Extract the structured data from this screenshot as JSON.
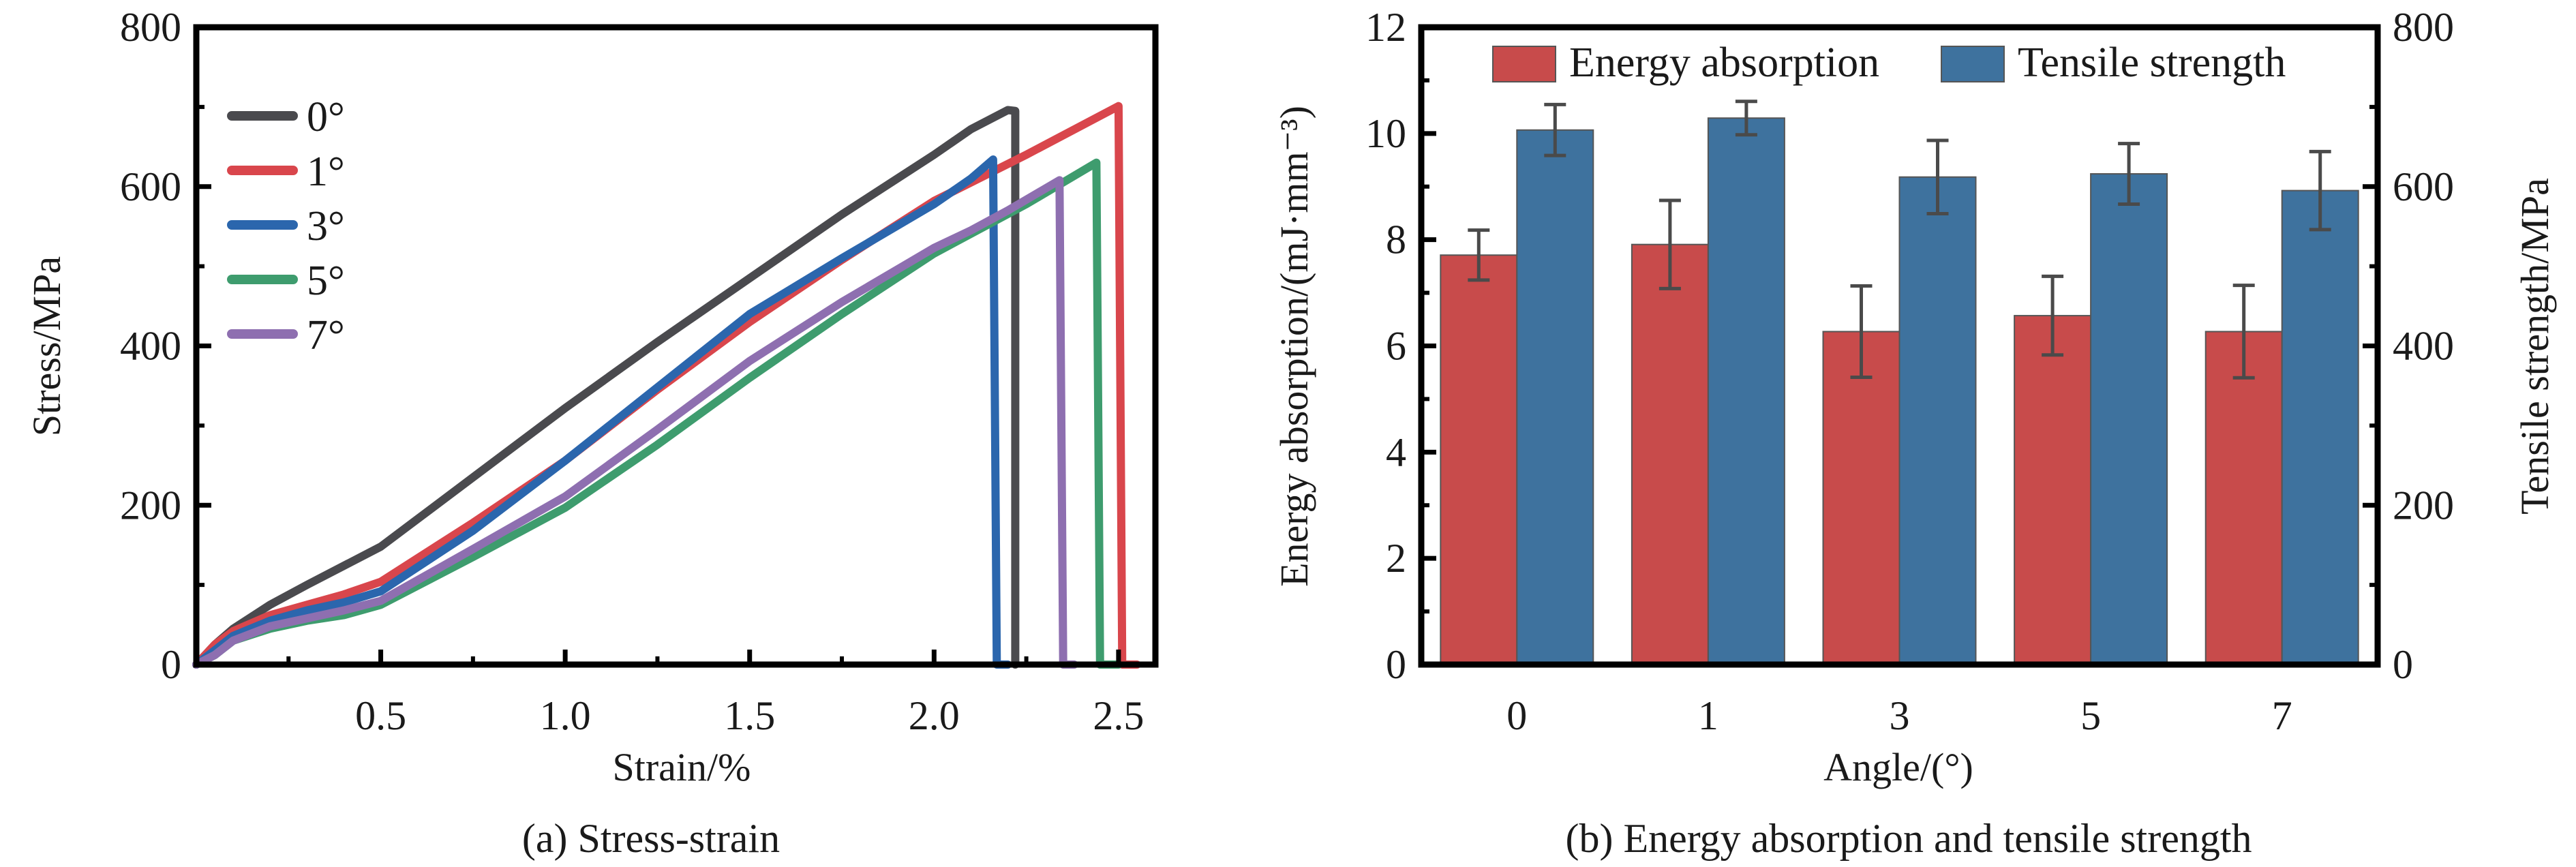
{
  "chart_data": [
    {
      "type": "line",
      "title": "",
      "caption": "(a) Stress-strain",
      "xlabel": "Strain/%",
      "ylabel": "Stress/MPa",
      "xlim": [
        0,
        2.6
      ],
      "ylim": [
        0,
        800
      ],
      "xticks": [
        "0.5",
        "1.0",
        "1.5",
        "2.0",
        "2.5"
      ],
      "xtick_values": [
        0.5,
        1.0,
        1.5,
        2.0,
        2.5
      ],
      "yticks": [
        "0",
        "200",
        "400",
        "600",
        "800"
      ],
      "ytick_values": [
        0,
        200,
        400,
        600,
        800
      ],
      "legend_position": "top-left",
      "grid": false,
      "series": [
        {
          "name": "0°",
          "color": "#4a4a4e",
          "x": [
            0,
            0.05,
            0.1,
            0.2,
            0.3,
            0.5,
            0.75,
            1.0,
            1.25,
            1.5,
            1.75,
            2.0,
            2.1,
            2.2,
            2.22,
            2.22
          ],
          "y": [
            0,
            25,
            45,
            75,
            100,
            148,
            235,
            322,
            405,
            485,
            565,
            640,
            672,
            696,
            695,
            0
          ]
        },
        {
          "name": "1°",
          "color": "#d9464c",
          "x": [
            0,
            0.05,
            0.1,
            0.2,
            0.3,
            0.4,
            0.5,
            0.75,
            1.0,
            1.25,
            1.5,
            1.75,
            2.0,
            2.25,
            2.5,
            2.51,
            2.55
          ],
          "y": [
            0,
            25,
            42,
            62,
            75,
            88,
            104,
            178,
            256,
            345,
            430,
            508,
            582,
            640,
            701,
            0,
            0
          ]
        },
        {
          "name": "3°",
          "color": "#2b66ad",
          "x": [
            0,
            0.05,
            0.1,
            0.2,
            0.3,
            0.4,
            0.5,
            0.75,
            1.0,
            1.25,
            1.5,
            1.75,
            2.0,
            2.1,
            2.16,
            2.17,
            2.2
          ],
          "y": [
            0,
            18,
            36,
            55,
            68,
            78,
            92,
            168,
            256,
            348,
            440,
            510,
            578,
            610,
            634,
            0,
            0
          ]
        },
        {
          "name": "5°",
          "color": "#3e9c6e",
          "x": [
            0,
            0.05,
            0.1,
            0.2,
            0.3,
            0.4,
            0.5,
            0.75,
            1.0,
            1.25,
            1.5,
            1.75,
            2.0,
            2.25,
            2.44,
            2.45,
            2.5
          ],
          "y": [
            0,
            12,
            30,
            45,
            55,
            62,
            75,
            135,
            197,
            276,
            360,
            440,
            516,
            578,
            630,
            0,
            0
          ]
        },
        {
          "name": "7°",
          "color": "#8e6fb0",
          "x": [
            0,
            0.05,
            0.1,
            0.2,
            0.3,
            0.4,
            0.5,
            0.75,
            1.0,
            1.25,
            1.5,
            1.75,
            2.0,
            2.1,
            2.2,
            2.34,
            2.35,
            2.38
          ],
          "y": [
            0,
            12,
            30,
            48,
            58,
            68,
            80,
            145,
            211,
            295,
            381,
            455,
            523,
            545,
            570,
            608,
            0,
            0
          ]
        }
      ]
    },
    {
      "type": "bar",
      "title": "",
      "caption": "(b) Energy absorption and tensile strength",
      "xlabel": "Angle/(°)",
      "ylabel": "Energy absorption/(mJ·mm⁻³)",
      "y2label": "Tensile strength/MPa",
      "categories": [
        "0",
        "1",
        "3",
        "5",
        "7"
      ],
      "ylim": [
        0,
        12
      ],
      "y2lim": [
        0,
        800
      ],
      "yticks": [
        "0",
        "2",
        "4",
        "6",
        "8",
        "10",
        "12"
      ],
      "ytick_values": [
        0,
        2,
        4,
        6,
        8,
        10,
        12
      ],
      "y2ticks": [
        "0",
        "200",
        "400",
        "600",
        "800"
      ],
      "y2tick_values": [
        0,
        200,
        400,
        600,
        800
      ],
      "legend_position": "top",
      "grid": false,
      "series": [
        {
          "name": "Energy absorption",
          "axis": "left",
          "color": "#c84b4b",
          "values": [
            7.71,
            7.91,
            6.27,
            6.57,
            6.27
          ],
          "error": [
            0.47,
            0.83,
            0.86,
            0.74,
            0.87
          ]
        },
        {
          "name": "Tensile strength",
          "axis": "right",
          "color": "#3e729e",
          "values": [
            671,
            686,
            612,
            616,
            595
          ],
          "error": [
            32,
            21,
            46,
            38,
            49
          ]
        }
      ]
    }
  ]
}
